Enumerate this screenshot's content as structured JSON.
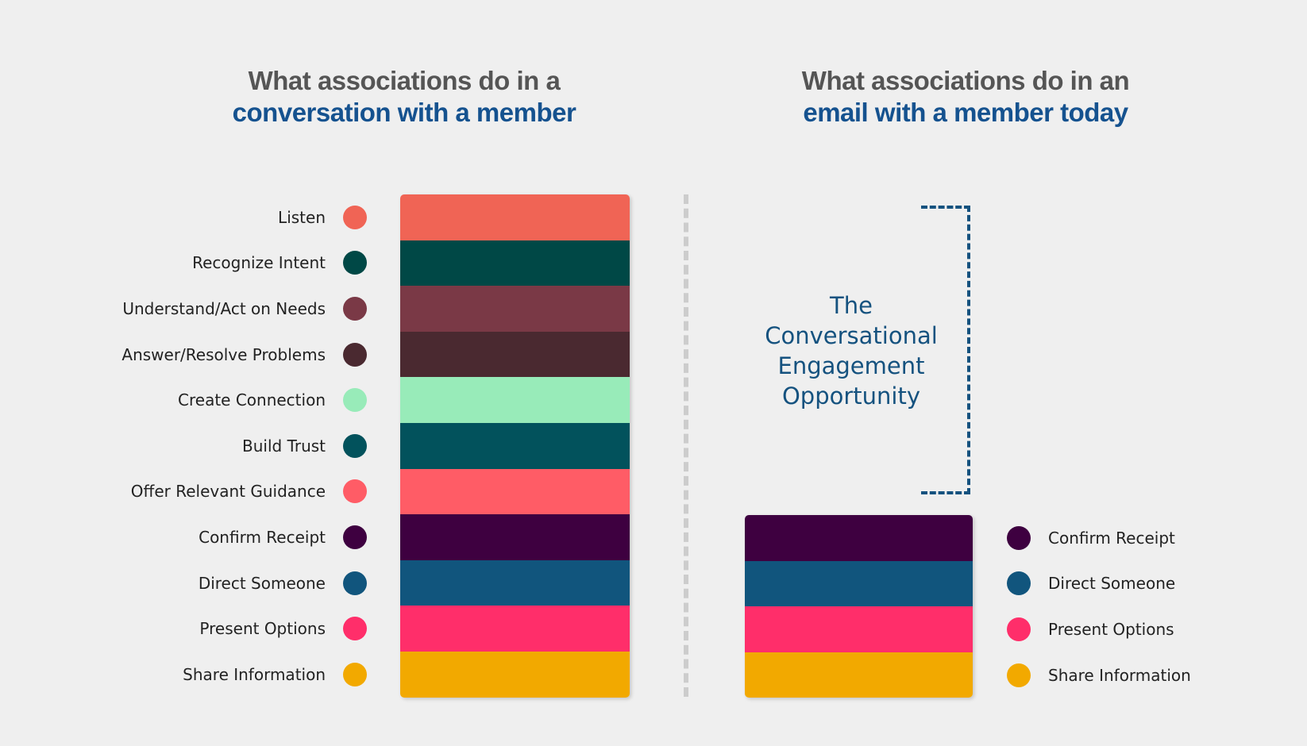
{
  "left": {
    "title_line1": "What associations do in a",
    "title_line2": "conversation with a member",
    "items": [
      {
        "label": "Listen",
        "color": "#f06455"
      },
      {
        "label": "Recognize Intent",
        "color": "#004846"
      },
      {
        "label": "Understand/Act on Needs",
        "color": "#7a3946"
      },
      {
        "label": "Answer/Resolve Problems",
        "color": "#4a2930"
      },
      {
        "label": "Create Connection",
        "color": "#98ebb9"
      },
      {
        "label": "Build Trust",
        "color": "#02525c"
      },
      {
        "label": "Offer Relevant Guidance",
        "color": "#ff5c66"
      },
      {
        "label": "Confirm Receipt",
        "color": "#3e0040"
      },
      {
        "label": "Direct Someone",
        "color": "#11557d"
      },
      {
        "label": "Present Options",
        "color": "#ff2e6a"
      },
      {
        "label": "Share Information",
        "color": "#f2a900"
      }
    ]
  },
  "right": {
    "title_line1": "What associations do in an",
    "title_line2": "email with a member today",
    "items": [
      {
        "label": "Confirm Receipt",
        "color": "#3e0040"
      },
      {
        "label": "Direct Someone",
        "color": "#11557d"
      },
      {
        "label": "Present Options",
        "color": "#ff2e6a"
      },
      {
        "label": "Share Information",
        "color": "#f2a900"
      }
    ],
    "opportunity_lines": [
      "The",
      "Conversational",
      "Engagement",
      "Opportunity"
    ]
  }
}
